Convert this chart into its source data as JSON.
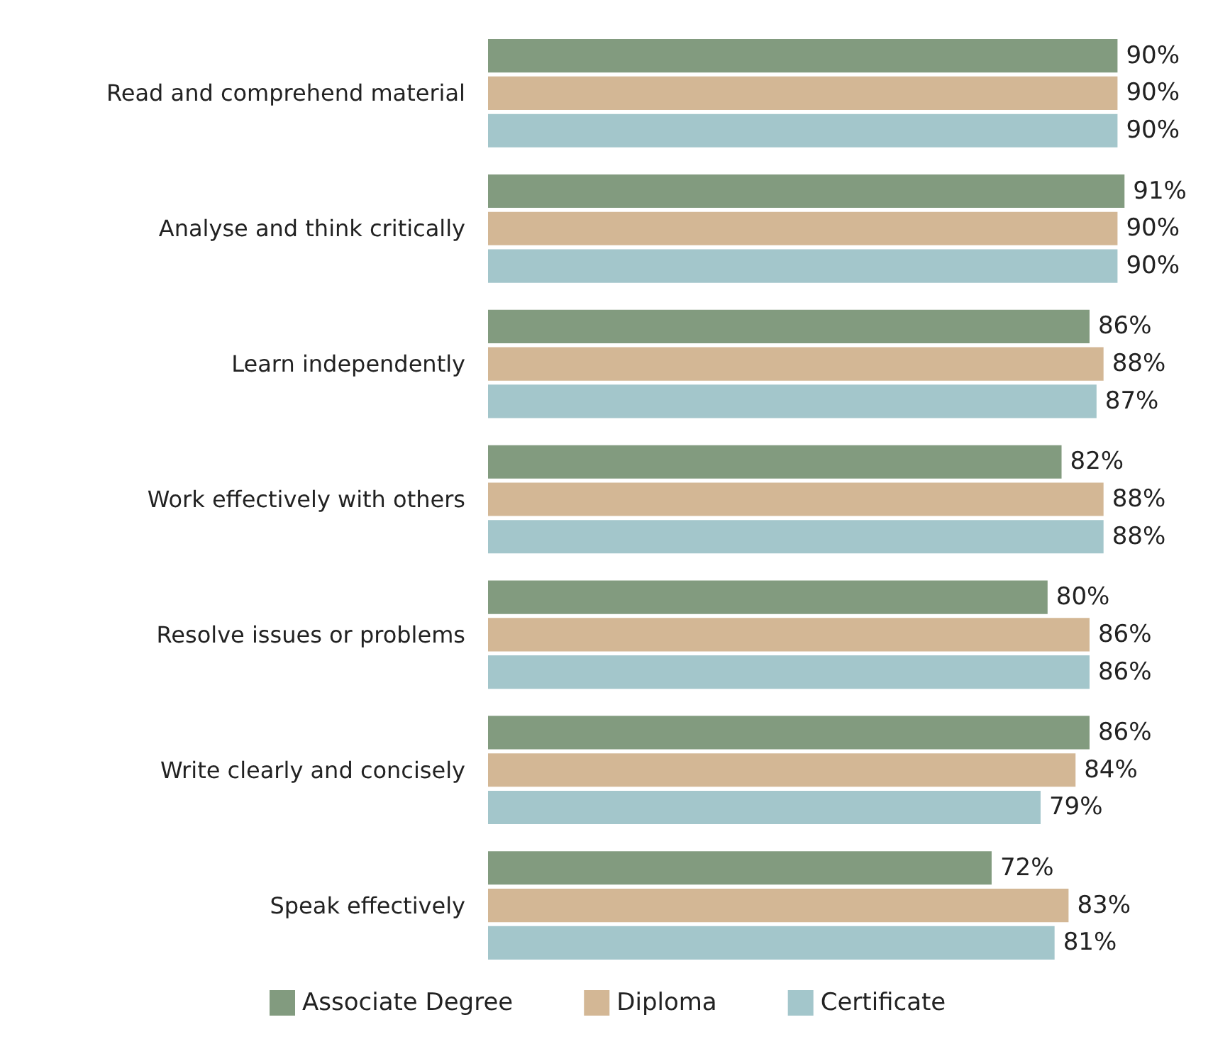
{
  "chart_data": {
    "type": "bar",
    "orientation": "horizontal",
    "categories": [
      "Read and comprehend material",
      "Analyse and think critically",
      "Learn independently",
      "Work effectively with others",
      "Resolve issues or problems",
      "Write clearly and concisely",
      "Speak effectively"
    ],
    "series": [
      {
        "name": "Associate Degree",
        "color": "#829b7f",
        "values": [
          90,
          91,
          86,
          82,
          80,
          86,
          72
        ],
        "value_labels": [
          "90%",
          "91%",
          "86%",
          "82%",
          "80%",
          "86%",
          "72%"
        ]
      },
      {
        "name": "Diploma",
        "color": "#d3b795",
        "values": [
          90,
          90,
          88,
          88,
          86,
          84,
          83
        ],
        "value_labels": [
          "90%",
          "90%",
          "88%",
          "88%",
          "86%",
          "84%",
          "83%"
        ]
      },
      {
        "name": "Certificate",
        "color": "#a3c6cb",
        "values": [
          90,
          90,
          87,
          88,
          86,
          79,
          81
        ],
        "value_labels": [
          "90%",
          "90%",
          "87%",
          "88%",
          "86%",
          "79%",
          "81%"
        ]
      }
    ],
    "grid": false,
    "legend": "bottom"
  }
}
